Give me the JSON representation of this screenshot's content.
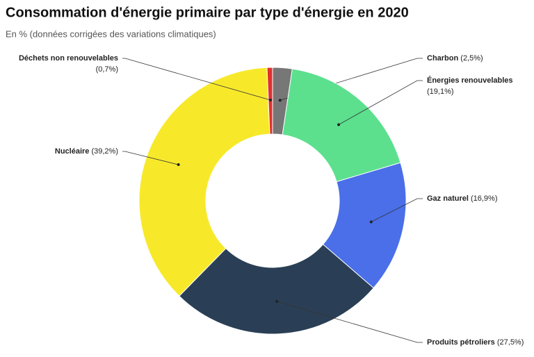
{
  "chart_data": {
    "type": "donut",
    "title": "Consommation d'énergie primaire par type d'énergie en 2020",
    "subtitle": "En % (données corrigées des variations climatiques)",
    "categories": [
      "Charbon",
      "Énergies renouvelables",
      "Gaz naturel",
      "Produits pétroliers",
      "Nucléaire",
      "Déchets non renouvelables"
    ],
    "values": [
      2.5,
      19.1,
      16.9,
      27.5,
      39.2,
      0.7
    ],
    "value_labels": [
      "(2,5%)",
      "(19,1%)",
      "(16,9%)",
      "(27,5%)",
      "(39,2%)",
      "(0,7%)"
    ],
    "colors": [
      "#777777",
      "#5ce08e",
      "#4a6fe8",
      "#2a3f55",
      "#f7e92a",
      "#e03030"
    ]
  }
}
